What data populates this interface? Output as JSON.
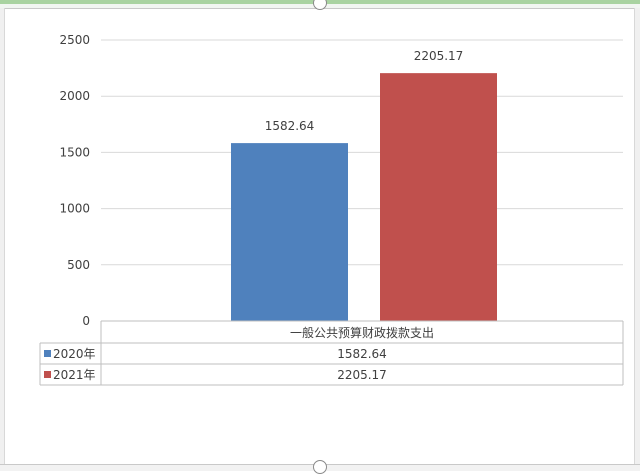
{
  "chart_data": {
    "type": "bar",
    "categories": [
      "一般公共预算财政拨款支出"
    ],
    "series": [
      {
        "name": "2020年",
        "values": [
          1582.64
        ],
        "color": "#4f81bd",
        "value_label": "1582.64"
      },
      {
        "name": "2021年",
        "values": [
          2205.17
        ],
        "color": "#c0504d",
        "value_label": "2205.17"
      }
    ],
    "y_ticks": [
      "0",
      "500",
      "1000",
      "1500",
      "2000",
      "2500"
    ],
    "ylim": [
      0,
      2500
    ],
    "grid": true,
    "legend_placement": "data-table"
  }
}
